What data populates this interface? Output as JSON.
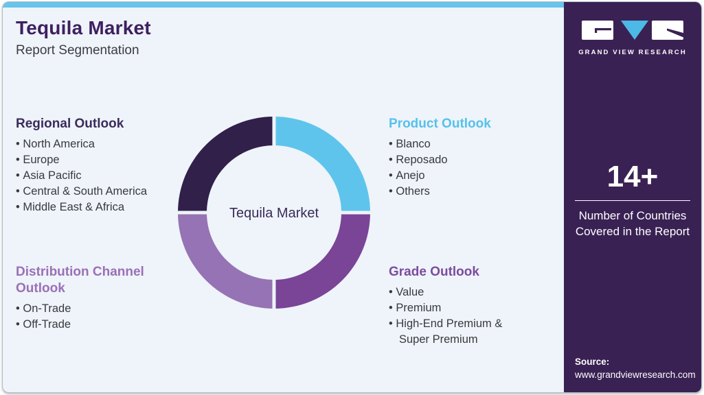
{
  "header": {
    "title": "Tequila Market",
    "subtitle": "Report Segmentation"
  },
  "sections": [
    {
      "heading": "Regional Outlook",
      "heading_color": "#3b2b5c",
      "items": [
        "North America",
        "Europe",
        "Asia Pacific",
        "Central & South America",
        "Middle East & Africa"
      ]
    },
    {
      "heading": "Product Outlook",
      "heading_color": "#56c1eb",
      "items": [
        "Blanco",
        "Reposado",
        "Anejo",
        "Others"
      ]
    },
    {
      "heading": "Distribution Channel Outlook",
      "heading_color": "#9b6fb8",
      "items": [
        "On-Trade",
        "Off-Trade"
      ]
    },
    {
      "heading": "Grade Outlook",
      "heading_color": "#7c4b9f",
      "items": [
        "Value",
        "Premium",
        "High-End Premium & Super Premium"
      ]
    }
  ],
  "chart_data": {
    "type": "pie",
    "subtype": "donut",
    "center_label": "Tequila Market",
    "center_label_color": "#3b2a5a",
    "outer_radius": 140,
    "inner_radius": 98,
    "gap_width": 5,
    "start_angle": 0,
    "background": "#eef4f9",
    "legend_position": "none",
    "segments": [
      {
        "name": "Product Outlook",
        "value": 25,
        "color": "#5ec4ec"
      },
      {
        "name": "Grade Outlook",
        "value": 25,
        "color": "#7a4497"
      },
      {
        "name": "Distribution Channel Outlook",
        "value": 25,
        "color": "#9673b4"
      },
      {
        "name": "Regional Outlook",
        "value": 25,
        "color": "#31204a"
      }
    ]
  },
  "sidebar": {
    "brand_name": "GRAND VIEW RESEARCH",
    "stat_value": "14+",
    "stat_label": "Number of Countries Covered in the Report",
    "source_label": "Source:",
    "source_url": "www.grandviewresearch.com"
  },
  "colors": {
    "card_background": "#eef4f9",
    "top_accent": "#68c4ea",
    "sidebar_background": "#3a2153",
    "title": "#3e1f60",
    "logo_triangle": "#4cb9e7"
  }
}
